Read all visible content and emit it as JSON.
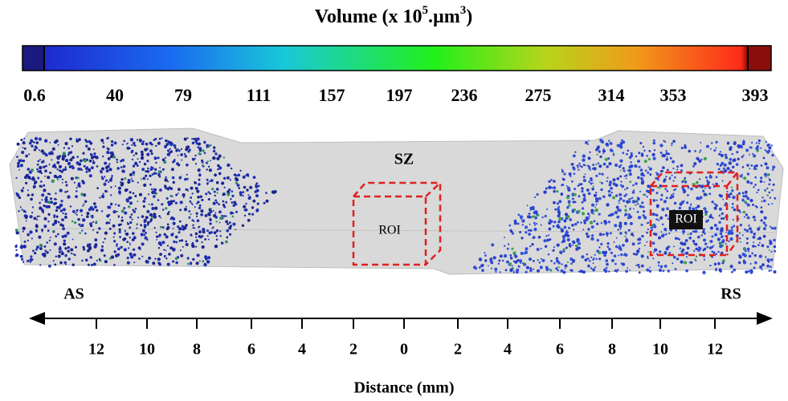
{
  "colorbar": {
    "title": [
      "Volume (x 10",
      "5",
      ".µm",
      "3",
      ")"
    ],
    "ticks": [
      0.6,
      40,
      79,
      111,
      157,
      197,
      236,
      275,
      314,
      353,
      393
    ]
  },
  "image": {
    "zone_label": "SZ",
    "roi_labels": [
      "ROI",
      "ROI"
    ],
    "left_side": "AS",
    "right_side": "RS"
  },
  "axis": {
    "ticks": [
      12,
      10,
      8,
      6,
      4,
      2,
      0,
      2,
      4,
      6,
      8,
      10,
      12
    ],
    "label": "Distance (mm)"
  }
}
